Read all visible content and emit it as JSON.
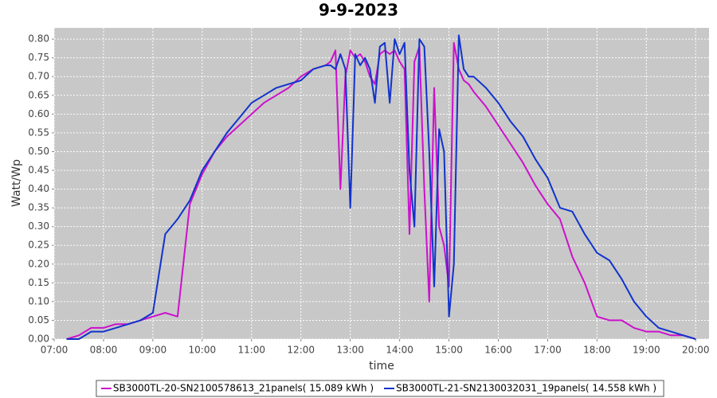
{
  "chart_data": {
    "type": "line",
    "title": "9-9-2023",
    "x_label": "time",
    "y_label": "Watt/Wp",
    "x": [
      7.25,
      7.5,
      7.75,
      8,
      8.25,
      8.5,
      8.75,
      9,
      9.25,
      9.5,
      9.75,
      10,
      10.25,
      10.5,
      10.75,
      11,
      11.25,
      11.5,
      11.75,
      12,
      12.25,
      12.5,
      12.6,
      12.7,
      12.8,
      12.9,
      13.0,
      13.1,
      13.2,
      13.3,
      13.4,
      13.5,
      13.6,
      13.7,
      13.8,
      13.9,
      14.0,
      14.1,
      14.2,
      14.3,
      14.4,
      14.5,
      14.6,
      14.7,
      14.8,
      14.9,
      15.0,
      15.1,
      15.2,
      15.3,
      15.4,
      15.5,
      15.75,
      16,
      16.25,
      16.5,
      16.75,
      17,
      17.25,
      17.5,
      17.75,
      18,
      18.25,
      18.5,
      18.75,
      19,
      19.25,
      19.5,
      19.75,
      20
    ],
    "series": [
      {
        "name": "SB3000TL-20-SN2100578613_21panels( 15.089 kWh )",
        "color": "#cc11cc",
        "values": [
          0,
          0.01,
          0.03,
          0.03,
          0.04,
          0.04,
          0.05,
          0.06,
          0.07,
          0.06,
          0.36,
          0.44,
          0.5,
          0.54,
          0.57,
          0.6,
          0.63,
          0.65,
          0.67,
          0.7,
          0.72,
          0.73,
          0.74,
          0.77,
          0.4,
          0.7,
          0.77,
          0.75,
          0.76,
          0.74,
          0.7,
          0.68,
          0.76,
          0.77,
          0.76,
          0.77,
          0.74,
          0.72,
          0.28,
          0.74,
          0.78,
          0.4,
          0.1,
          0.67,
          0.3,
          0.25,
          0.14,
          0.79,
          0.72,
          0.69,
          0.68,
          0.66,
          0.62,
          0.57,
          0.52,
          0.47,
          0.41,
          0.36,
          0.32,
          0.22,
          0.15,
          0.06,
          0.05,
          0.05,
          0.03,
          0.02,
          0.02,
          0.01,
          0.01,
          0
        ]
      },
      {
        "name": "SB3000TL-21-SN2130032031_19panels( 14.558 kWh )",
        "color": "#1133cc",
        "values": [
          0,
          0,
          0.02,
          0.02,
          0.03,
          0.04,
          0.05,
          0.07,
          0.28,
          0.32,
          0.37,
          0.45,
          0.5,
          0.55,
          0.59,
          0.63,
          0.65,
          0.67,
          0.68,
          0.69,
          0.72,
          0.73,
          0.73,
          0.72,
          0.76,
          0.72,
          0.35,
          0.76,
          0.73,
          0.75,
          0.72,
          0.63,
          0.78,
          0.79,
          0.63,
          0.8,
          0.76,
          0.79,
          0.45,
          0.3,
          0.8,
          0.78,
          0.5,
          0.14,
          0.56,
          0.5,
          0.06,
          0.2,
          0.81,
          0.72,
          0.7,
          0.7,
          0.67,
          0.63,
          0.58,
          0.54,
          0.48,
          0.43,
          0.35,
          0.34,
          0.28,
          0.23,
          0.21,
          0.16,
          0.1,
          0.06,
          0.03,
          0.02,
          0.01,
          0
        ]
      }
    ],
    "xlim": [
      7,
      20.27
    ],
    "ylim": [
      0,
      0.83
    ],
    "xticks": [
      {
        "value": 7,
        "label": "07:00"
      },
      {
        "value": 8,
        "label": "08:00"
      },
      {
        "value": 9,
        "label": "09:00"
      },
      {
        "value": 10,
        "label": "10:00"
      },
      {
        "value": 11,
        "label": "11:00"
      },
      {
        "value": 12,
        "label": "12:00"
      },
      {
        "value": 13,
        "label": "13:00"
      },
      {
        "value": 14,
        "label": "14:00"
      },
      {
        "value": 15,
        "label": "15:00"
      },
      {
        "value": 16,
        "label": "16:00"
      },
      {
        "value": 17,
        "label": "17:00"
      },
      {
        "value": 18,
        "label": "18:00"
      },
      {
        "value": 19,
        "label": "19:00"
      },
      {
        "value": 20,
        "label": "20:00"
      }
    ],
    "yticks": [
      {
        "value": 0,
        "label": "0.00"
      },
      {
        "value": 0.05,
        "label": "0.05"
      },
      {
        "value": 0.1,
        "label": "0.10"
      },
      {
        "value": 0.15,
        "label": "0.15"
      },
      {
        "value": 0.2,
        "label": "0.20"
      },
      {
        "value": 0.25,
        "label": "0.25"
      },
      {
        "value": 0.3,
        "label": "0.30"
      },
      {
        "value": 0.35,
        "label": "0.35"
      },
      {
        "value": 0.4,
        "label": "0.40"
      },
      {
        "value": 0.45,
        "label": "0.45"
      },
      {
        "value": 0.5,
        "label": "0.50"
      },
      {
        "value": 0.55,
        "label": "0.55"
      },
      {
        "value": 0.6,
        "label": "0.60"
      },
      {
        "value": 0.65,
        "label": "0.65"
      },
      {
        "value": 0.7,
        "label": "0.70"
      },
      {
        "value": 0.75,
        "label": "0.75"
      },
      {
        "value": 0.8,
        "label": "0.80"
      }
    ],
    "grid": true,
    "legend": "bottom"
  }
}
